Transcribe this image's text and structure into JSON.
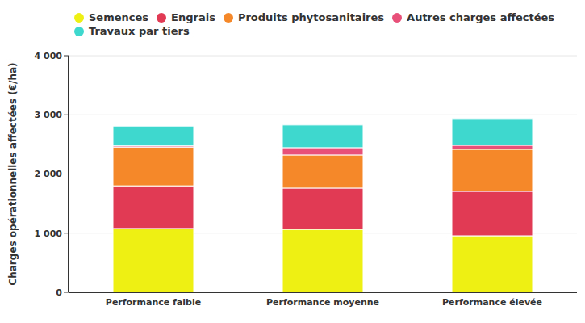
{
  "chart_data": {
    "type": "bar",
    "stacked": true,
    "y_label": "Charges opérationnelles affectées (€/ha)",
    "categories": [
      "Performance faible",
      "Performance moyenne",
      "Performance élevée"
    ],
    "series": [
      {
        "name": "Semences",
        "color": "#eef014",
        "values": [
          1080,
          1065,
          956
        ]
      },
      {
        "name": "Engrais",
        "color": "#e03a54",
        "values": [
          720,
          697,
          752
        ]
      },
      {
        "name": "Produits phytosanitaires",
        "color": "#f5892a",
        "values": [
          655,
          560,
          710
        ]
      },
      {
        "name": "Autres charges affectées",
        "color": "#e8507a",
        "values": [
          20,
          123,
          68
        ]
      },
      {
        "name": "Travaux par tiers",
        "color": "#3ed8cf",
        "values": [
          335,
          383,
          451
        ]
      }
    ],
    "ylim": [
      0,
      4000
    ],
    "yticks": [
      0,
      {
        "value": 1000,
        "label": "1 000"
      },
      {
        "value": 2000,
        "label": "2 000"
      },
      {
        "value": 3000,
        "label": "3 000"
      },
      {
        "value": 4000,
        "label": "4 000"
      }
    ],
    "grid": true,
    "legend": "top-left"
  }
}
